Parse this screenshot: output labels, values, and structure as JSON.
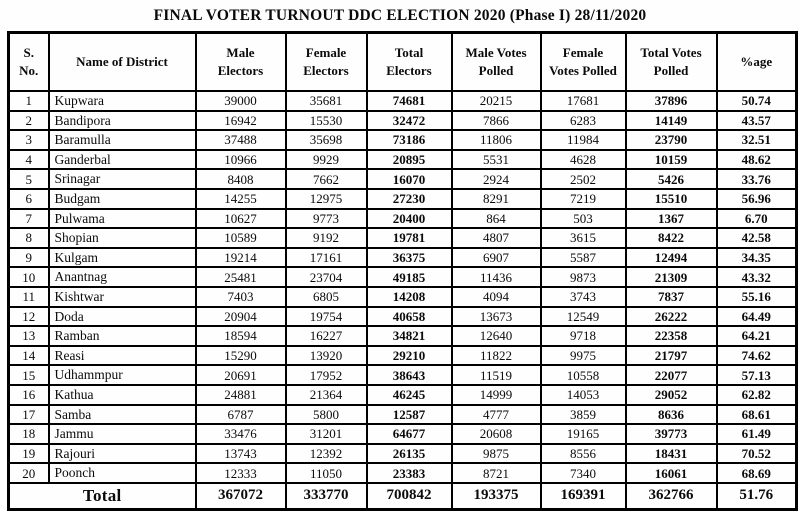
{
  "title": "FINAL VOTER TURNOUT DDC ELECTION 2020 (Phase I) 28/11/2020",
  "table": {
    "columns": [
      {
        "key": "sno",
        "label": "S.\nNo.",
        "bold": false
      },
      {
        "key": "district",
        "label": "Name of District",
        "bold": false
      },
      {
        "key": "male_electors",
        "label": "Male\nElectors",
        "bold": false
      },
      {
        "key": "female_electors",
        "label": "Female\nElectors",
        "bold": false
      },
      {
        "key": "total_electors",
        "label": "Total\nElectors",
        "bold": true
      },
      {
        "key": "male_votes",
        "label": "Male  Votes\nPolled",
        "bold": false
      },
      {
        "key": "female_votes",
        "label": "Female\nVotes Polled",
        "bold": false
      },
      {
        "key": "total_votes",
        "label": "Total Votes\nPolled",
        "bold": true
      },
      {
        "key": "pct",
        "label": "%age",
        "bold": true
      }
    ],
    "rows": [
      {
        "sno": "1",
        "district": "Kupwara",
        "male_electors": "39000",
        "female_electors": "35681",
        "total_electors": "74681",
        "male_votes": "20215",
        "female_votes": "17681",
        "total_votes": "37896",
        "pct": "50.74"
      },
      {
        "sno": "2",
        "district": "Bandipora",
        "male_electors": "16942",
        "female_electors": "15530",
        "total_electors": "32472",
        "male_votes": "7866",
        "female_votes": "6283",
        "total_votes": "14149",
        "pct": "43.57"
      },
      {
        "sno": "3",
        "district": "Baramulla",
        "male_electors": "37488",
        "female_electors": "35698",
        "total_electors": "73186",
        "male_votes": "11806",
        "female_votes": "11984",
        "total_votes": "23790",
        "pct": "32.51"
      },
      {
        "sno": "4",
        "district": "Ganderbal",
        "male_electors": "10966",
        "female_electors": "9929",
        "total_electors": "20895",
        "male_votes": "5531",
        "female_votes": "4628",
        "total_votes": "10159",
        "pct": "48.62"
      },
      {
        "sno": "5",
        "district": "Srinagar",
        "male_electors": "8408",
        "female_electors": "7662",
        "total_electors": "16070",
        "male_votes": "2924",
        "female_votes": "2502",
        "total_votes": "5426",
        "pct": "33.76"
      },
      {
        "sno": "6",
        "district": "Budgam",
        "male_electors": "14255",
        "female_electors": "12975",
        "total_electors": "27230",
        "male_votes": "8291",
        "female_votes": "7219",
        "total_votes": "15510",
        "pct": "56.96"
      },
      {
        "sno": "7",
        "district": "Pulwama",
        "male_electors": "10627",
        "female_electors": "9773",
        "total_electors": "20400",
        "male_votes": "864",
        "female_votes": "503",
        "total_votes": "1367",
        "pct": "6.70"
      },
      {
        "sno": "8",
        "district": "Shopian",
        "male_electors": "10589",
        "female_electors": "9192",
        "total_electors": "19781",
        "male_votes": "4807",
        "female_votes": "3615",
        "total_votes": "8422",
        "pct": "42.58"
      },
      {
        "sno": "9",
        "district": "Kulgam",
        "male_electors": "19214",
        "female_electors": "17161",
        "total_electors": "36375",
        "male_votes": "6907",
        "female_votes": "5587",
        "total_votes": "12494",
        "pct": "34.35"
      },
      {
        "sno": "10",
        "district": "Anantnag",
        "male_electors": "25481",
        "female_electors": "23704",
        "total_electors": "49185",
        "male_votes": "11436",
        "female_votes": "9873",
        "total_votes": "21309",
        "pct": "43.32"
      },
      {
        "sno": "11",
        "district": "Kishtwar",
        "male_electors": "7403",
        "female_electors": "6805",
        "total_electors": "14208",
        "male_votes": "4094",
        "female_votes": "3743",
        "total_votes": "7837",
        "pct": "55.16"
      },
      {
        "sno": "12",
        "district": "Doda",
        "male_electors": "20904",
        "female_electors": "19754",
        "total_electors": "40658",
        "male_votes": "13673",
        "female_votes": "12549",
        "total_votes": "26222",
        "pct": "64.49"
      },
      {
        "sno": "13",
        "district": "Ramban",
        "male_electors": "18594",
        "female_electors": "16227",
        "total_electors": "34821",
        "male_votes": "12640",
        "female_votes": "9718",
        "total_votes": "22358",
        "pct": "64.21"
      },
      {
        "sno": "14",
        "district": "Reasi",
        "male_electors": "15290",
        "female_electors": "13920",
        "total_electors": "29210",
        "male_votes": "11822",
        "female_votes": "9975",
        "total_votes": "21797",
        "pct": "74.62"
      },
      {
        "sno": "15",
        "district": "Udhammpur",
        "male_electors": "20691",
        "female_electors": "17952",
        "total_electors": "38643",
        "male_votes": "11519",
        "female_votes": "10558",
        "total_votes": "22077",
        "pct": "57.13"
      },
      {
        "sno": "16",
        "district": "Kathua",
        "male_electors": "24881",
        "female_electors": "21364",
        "total_electors": "46245",
        "male_votes": "14999",
        "female_votes": "14053",
        "total_votes": "29052",
        "pct": "62.82"
      },
      {
        "sno": "17",
        "district": "Samba",
        "male_electors": "6787",
        "female_electors": "5800",
        "total_electors": "12587",
        "male_votes": "4777",
        "female_votes": "3859",
        "total_votes": "8636",
        "pct": "68.61"
      },
      {
        "sno": "18",
        "district": "Jammu",
        "male_electors": "33476",
        "female_electors": "31201",
        "total_electors": "64677",
        "male_votes": "20608",
        "female_votes": "19165",
        "total_votes": "39773",
        "pct": "61.49"
      },
      {
        "sno": "19",
        "district": "Rajouri",
        "male_electors": "13743",
        "female_electors": "12392",
        "total_electors": "26135",
        "male_votes": "9875",
        "female_votes": "8556",
        "total_votes": "18431",
        "pct": "70.52"
      },
      {
        "sno": "20",
        "district": "Poonch",
        "male_electors": "12333",
        "female_electors": "11050",
        "total_electors": "23383",
        "male_votes": "8721",
        "female_votes": "7340",
        "total_votes": "16061",
        "pct": "68.69"
      }
    ],
    "total": {
      "label": "Total",
      "male_electors": "367072",
      "female_electors": "333770",
      "total_electors": "700842",
      "male_votes": "193375",
      "female_votes": "169391",
      "total_votes": "362766",
      "pct": "51.76"
    }
  }
}
